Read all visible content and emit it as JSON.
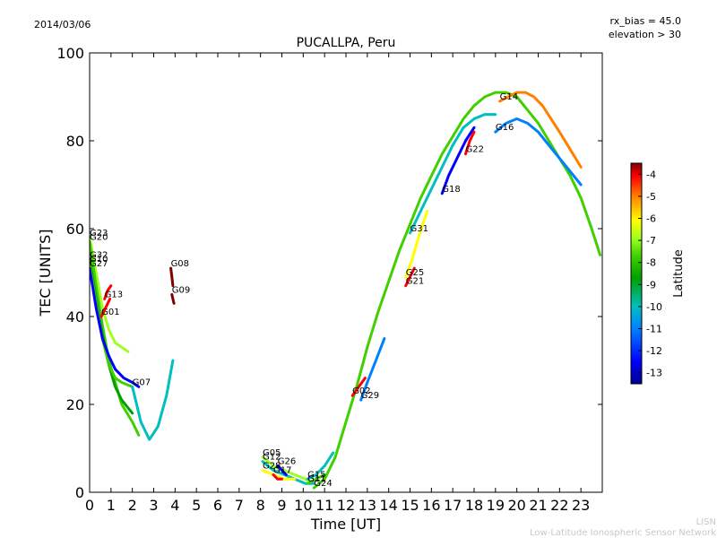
{
  "header": {
    "date": "2014/03/06",
    "rx_bias": "rx_bias = 45.0",
    "elevation": "elevation > 30"
  },
  "footer": {
    "line1": "LISN",
    "line2": "Low-Latitude Ionospheric Sensor Network"
  },
  "colors": {
    "lat_scale": [
      "#00008f",
      "#0000ff",
      "#0080ff",
      "#00bfbf",
      "#00a000",
      "#40d000",
      "#a0ff20",
      "#ffff00",
      "#ff8000",
      "#ff0000",
      "#800000"
    ]
  },
  "chart_data": {
    "type": "scatter",
    "title": "PUCALLPA, Peru",
    "xlabel": "Time [UT]",
    "ylabel": "TEC [UNITS]",
    "xlim": [
      0,
      24
    ],
    "ylim": [
      0,
      100
    ],
    "xticks": [
      0,
      1,
      2,
      3,
      4,
      5,
      6,
      7,
      8,
      9,
      10,
      11,
      12,
      13,
      14,
      15,
      16,
      17,
      18,
      19,
      20,
      21,
      22,
      23
    ],
    "yticks": [
      0,
      20,
      40,
      60,
      80,
      100
    ],
    "colorbar": {
      "label": "Latitude",
      "range": [
        -13.5,
        -3.5
      ],
      "ticks": [
        -13,
        -12,
        -11,
        -10,
        -9,
        -8,
        -7,
        -6,
        -5,
        -4
      ]
    },
    "series": [
      {
        "name": "G23",
        "lat": -7.5,
        "x": [
          0.0,
          0.3,
          0.6,
          0.9,
          1.2,
          1.5,
          1.8
        ],
        "y": [
          58,
          50,
          42,
          37,
          34,
          33,
          32
        ]
      },
      {
        "name": "G20",
        "lat": -8.5,
        "x": [
          0.0,
          0.3,
          0.6,
          0.9,
          1.2,
          1.5,
          2.0,
          2.3
        ],
        "y": [
          57,
          47,
          38,
          30,
          25,
          20,
          16,
          13
        ]
      },
      {
        "name": "G32",
        "lat": -10,
        "x": [
          0.0,
          0.3,
          0.6,
          0.9,
          1.2,
          1.5,
          2.0
        ],
        "y": [
          53,
          44,
          36,
          29,
          24,
          21,
          18
        ]
      },
      {
        "name": "G10",
        "lat": -9,
        "x": [
          0.0,
          0.3,
          0.6,
          0.9,
          1.2,
          1.5,
          2.0
        ],
        "y": [
          52,
          43,
          35,
          29,
          26,
          25,
          24
        ]
      },
      {
        "name": "G27",
        "lat": -12.5,
        "x": [
          0.0,
          0.3,
          0.6,
          0.9,
          1.2,
          1.6,
          2.0,
          2.3
        ],
        "y": [
          51,
          42,
          35,
          31,
          28,
          26,
          25,
          24
        ]
      },
      {
        "name": "G13",
        "lat": -5,
        "x": [
          0.7,
          0.85,
          1.0
        ],
        "y": [
          44,
          46,
          47
        ]
      },
      {
        "name": "G01",
        "lat": -4.5,
        "x": [
          0.55,
          0.75,
          0.95
        ],
        "y": [
          40,
          42,
          44
        ]
      },
      {
        "name": "G08",
        "lat": -4,
        "x": [
          3.8,
          3.85,
          3.9
        ],
        "y": [
          51,
          49,
          47
        ]
      },
      {
        "name": "G09",
        "lat": -4,
        "x": [
          3.85,
          3.9,
          3.95
        ],
        "y": [
          45,
          44,
          43
        ]
      },
      {
        "name": "G07",
        "lat": -11,
        "x": [
          2.0,
          2.4,
          2.8,
          3.2,
          3.6,
          3.9
        ],
        "y": [
          24,
          16,
          12,
          15,
          22,
          30
        ]
      },
      {
        "name": "G05",
        "lat": -8,
        "x": [
          8.1,
          8.6,
          9.1,
          9.6,
          10.1,
          10.5
        ],
        "y": [
          8,
          6,
          5,
          4,
          3,
          2
        ]
      },
      {
        "name": "G12",
        "lat": -10.5,
        "x": [
          8.1,
          8.6,
          9.1,
          9.6,
          10.1,
          10.5
        ],
        "y": [
          7,
          5,
          4,
          3,
          2,
          2
        ]
      },
      {
        "name": "G26",
        "lat": -12.5,
        "x": [
          8.8,
          9.0,
          9.2
        ],
        "y": [
          6,
          5,
          4
        ]
      },
      {
        "name": "G28",
        "lat": -6.5,
        "x": [
          8.1,
          8.6,
          9.1,
          9.6
        ],
        "y": [
          5,
          4,
          3,
          3
        ]
      },
      {
        "name": "G17",
        "lat": -5,
        "x": [
          8.6,
          8.8,
          9.0
        ],
        "y": [
          4,
          3,
          3
        ]
      },
      {
        "name": "G15",
        "lat": -11,
        "x": [
          10.2,
          10.6,
          11.0,
          11.4
        ],
        "y": [
          3,
          4,
          6,
          9
        ]
      },
      {
        "name": "G11",
        "lat": -9,
        "x": [
          10.2,
          10.6,
          11.0
        ],
        "y": [
          2,
          3,
          4
        ]
      },
      {
        "name": "G24",
        "lat": -8.5,
        "x": [
          10.5,
          11.0,
          11.5,
          12.0,
          12.5,
          13.0,
          13.5,
          14.0,
          14.5,
          15.0,
          15.5,
          16.0,
          16.5,
          17.0,
          17.5,
          18.0,
          18.5,
          19.0,
          19.5,
          20.0,
          20.5,
          21.0,
          21.5,
          22.0,
          22.5,
          23.0,
          23.5,
          23.9
        ],
        "y": [
          1,
          3,
          8,
          16,
          24,
          33,
          41,
          48,
          55,
          61,
          67,
          72,
          77,
          81,
          85,
          88,
          90,
          91,
          91,
          90,
          87,
          84,
          80,
          76,
          72,
          67,
          60,
          54
        ]
      },
      {
        "name": "G02",
        "lat": -5,
        "x": [
          12.3,
          12.6,
          12.9
        ],
        "y": [
          22,
          24,
          26
        ]
      },
      {
        "name": "G29",
        "lat": -12,
        "x": [
          12.7,
          13.0,
          13.4,
          13.8
        ],
        "y": [
          21,
          25,
          30,
          35
        ]
      },
      {
        "name": "G25",
        "lat": -7,
        "x": [
          14.8,
          15.1,
          15.4,
          15.8
        ],
        "y": [
          49,
          53,
          58,
          64
        ]
      },
      {
        "name": "G21",
        "lat": -5,
        "x": [
          14.8,
          15.0,
          15.2
        ],
        "y": [
          47,
          49,
          51
        ]
      },
      {
        "name": "G31",
        "lat": -11,
        "x": [
          15.0,
          15.5,
          16.0,
          16.5,
          17.0,
          17.5,
          18.0,
          18.5,
          19.0
        ],
        "y": [
          59,
          64,
          69,
          74,
          79,
          83,
          85,
          86,
          86
        ]
      },
      {
        "name": "G18",
        "lat": -13,
        "x": [
          16.5,
          16.8,
          17.2,
          17.6,
          18.0
        ],
        "y": [
          68,
          72,
          76,
          80,
          83
        ]
      },
      {
        "name": "G22",
        "lat": -4.5,
        "x": [
          17.6,
          17.8,
          18.0
        ],
        "y": [
          77,
          80,
          82
        ]
      },
      {
        "name": "G16",
        "lat": -11.5,
        "x": [
          19.0,
          19.5,
          20.0,
          20.5,
          21.0,
          21.5,
          22.0,
          22.5,
          23.0
        ],
        "y": [
          82,
          84,
          85,
          84,
          82,
          79,
          76,
          73,
          70
        ]
      },
      {
        "name": "G14",
        "lat": -5.5,
        "x": [
          19.2,
          19.6,
          20.0,
          20.4,
          20.8,
          21.2,
          21.6,
          22.0,
          22.5,
          23.0
        ],
        "y": [
          89,
          90,
          91,
          91,
          90,
          88,
          85,
          82,
          78,
          74
        ]
      }
    ]
  }
}
